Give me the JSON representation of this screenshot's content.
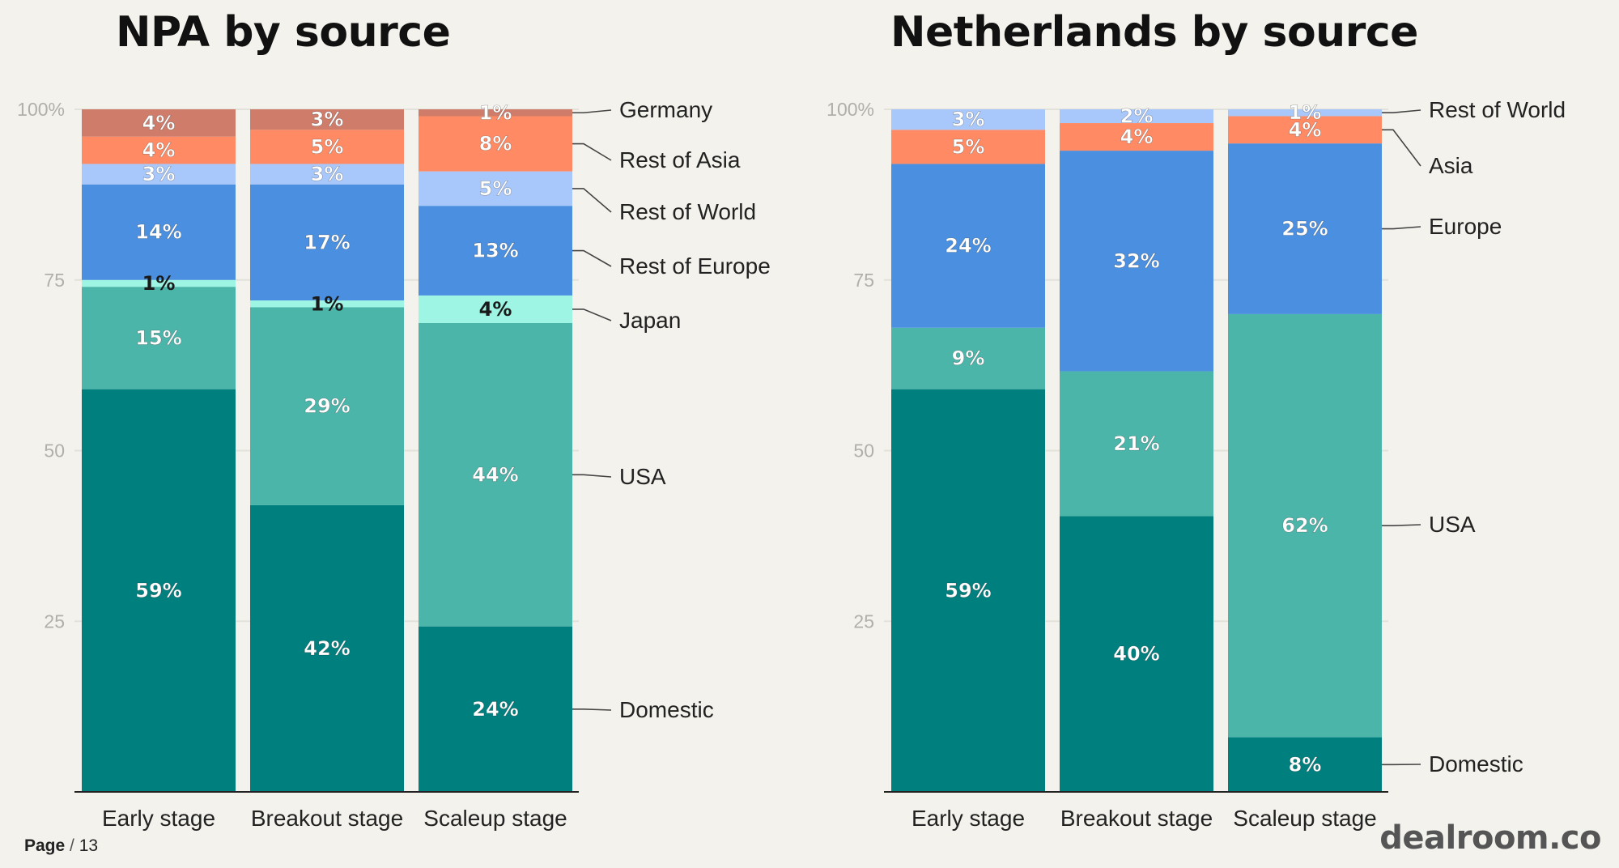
{
  "page": {
    "label": "Page",
    "separator": "/",
    "number": "13"
  },
  "brand": "dealroom.co",
  "colors": {
    "Domestic": "#007f7f",
    "USA": "#4bb5aa",
    "Japan": "#9ef5e3",
    "Rest of Europe": "#4a8fe0",
    "Europe": "#4a8fe0",
    "Rest of World": "#a8c8fb",
    "Rest of Asia": "#ff8a63",
    "Asia": "#ff8a63",
    "Germany": "#d07c6a"
  },
  "chart_data": [
    {
      "type": "bar",
      "stacked": true,
      "title": "NPA by source",
      "categories": [
        "Early stage",
        "Breakout stage",
        "Scaleup stage"
      ],
      "ylim": [
        0,
        100
      ],
      "yticks": [
        "100%",
        "75",
        "50",
        "25"
      ],
      "grid": true,
      "legend": "right, labels at scaleup bar",
      "series": [
        {
          "name": "Domestic",
          "values": [
            59,
            42,
            24
          ],
          "labels": [
            "59%",
            "42%",
            "24%"
          ]
        },
        {
          "name": "USA",
          "values": [
            15,
            29,
            44
          ],
          "labels": [
            "15%",
            "29%",
            "44%"
          ]
        },
        {
          "name": "Japan",
          "values": [
            1,
            1,
            4
          ],
          "labels": [
            "1%",
            "1%",
            "4%"
          ]
        },
        {
          "name": "Rest of Europe",
          "values": [
            14,
            17,
            13
          ],
          "labels": [
            "14%",
            "17%",
            "13%"
          ]
        },
        {
          "name": "Rest of World",
          "values": [
            3,
            3,
            5
          ],
          "labels": [
            "3%",
            "3%",
            "5%"
          ]
        },
        {
          "name": "Rest of Asia",
          "values": [
            4,
            5,
            8
          ],
          "labels": [
            "4%",
            "5%",
            "8%"
          ]
        },
        {
          "name": "Germany",
          "values": [
            4,
            3,
            1
          ],
          "labels": [
            "4%",
            "3%",
            "1%"
          ]
        }
      ]
    },
    {
      "type": "bar",
      "stacked": true,
      "title": "Netherlands by source",
      "categories": [
        "Early stage",
        "Breakout stage",
        "Scaleup stage"
      ],
      "ylim": [
        0,
        100
      ],
      "yticks": [
        "100%",
        "75",
        "50",
        "25"
      ],
      "grid": true,
      "legend": "right, labels at scaleup bar",
      "series": [
        {
          "name": "Domestic",
          "values": [
            59,
            40,
            8
          ],
          "labels": [
            "59%",
            "40%",
            "8%"
          ]
        },
        {
          "name": "USA",
          "values": [
            9,
            21,
            62
          ],
          "labels": [
            "9%",
            "21%",
            "62%"
          ]
        },
        {
          "name": "Europe",
          "values": [
            24,
            32,
            25
          ],
          "labels": [
            "24%",
            "32%",
            "25%"
          ]
        },
        {
          "name": "Asia",
          "values": [
            5,
            4,
            4
          ],
          "labels": [
            "5%",
            "4%",
            "4%"
          ]
        },
        {
          "name": "Rest of World",
          "values": [
            3,
            2,
            1
          ],
          "labels": [
            "3%",
            "2%",
            "1%"
          ]
        }
      ]
    }
  ]
}
